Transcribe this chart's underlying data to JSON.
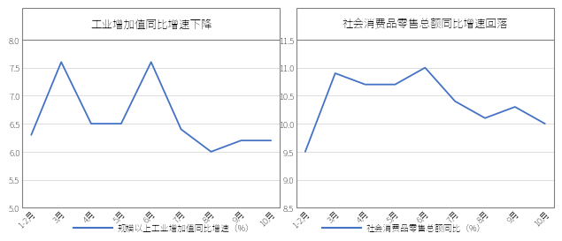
{
  "left_title": "工业增加值同比增速下降",
  "right_title": "社会消费品零售总额同比增速回落",
  "x_labels": [
    "1-2月",
    "3月",
    "4月",
    "5月",
    "6月",
    "7月",
    "8月",
    "9月",
    "10月"
  ],
  "left_values": [
    6.3,
    7.6,
    6.5,
    6.5,
    7.6,
    6.4,
    6.0,
    6.2,
    6.2
  ],
  "right_values": [
    9.5,
    10.9,
    10.7,
    10.7,
    11.0,
    10.4,
    10.1,
    10.3,
    10.0
  ],
  "left_ylim": [
    5.0,
    8.0
  ],
  "right_ylim": [
    8.5,
    11.5
  ],
  "left_yticks": [
    5.0,
    5.5,
    6.0,
    6.5,
    7.0,
    7.5,
    8.0
  ],
  "right_yticks": [
    8.5,
    9.0,
    9.5,
    10.0,
    10.5,
    11.0,
    11.5
  ],
  "left_legend": "——规模以上工业增加值同比增速（%）",
  "right_legend": "——社会消费品零售总额同比（%）",
  "line_color": "#4472C4",
  "border_color": "#808080",
  "bg_color": "#FFFFFF",
  "grid_color": "#D0D0D0",
  "title_fontsize": 9,
  "tick_fontsize": 7,
  "legend_fontsize": 7
}
